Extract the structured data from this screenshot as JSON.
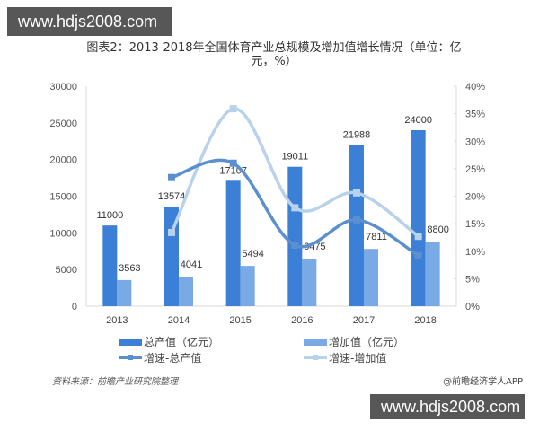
{
  "watermarks": {
    "top": "www.hdjs2008.com",
    "bottom": "www.hdjs2008.com"
  },
  "title_line1": "图表2：2013-2018年全国体育产业总规模及增加值增长情况（单位：亿",
  "title_line2": "元，%）",
  "source": "资料来源：前瞻产业研究院整理",
  "credit": "@前瞻经济学人APP",
  "colors": {
    "total": "#3c7fd6",
    "added": "#7aaae6",
    "growth_total": "#5b8fd0",
    "growth_added": "#b8d2ec"
  },
  "legend": {
    "total": "总产值（亿元）",
    "added": "增加值（亿元）",
    "growth_total": "增速-总产值",
    "growth_added": "增速-增加值"
  },
  "chart_data": {
    "type": "bar+line",
    "title": "2013-2018年全国体育产业总规模及增加值增长情况（单位：亿元，%）",
    "categories": [
      "2013",
      "2014",
      "2015",
      "2016",
      "2017",
      "2018"
    ],
    "series": [
      {
        "name": "总产值（亿元）",
        "type": "bar",
        "axis": "left",
        "values": [
          11000,
          13574,
          17107,
          19011,
          21988,
          24000
        ]
      },
      {
        "name": "增加值（亿元）",
        "type": "bar",
        "axis": "left",
        "values": [
          3563,
          4041,
          5494,
          6475,
          7811,
          8800
        ]
      },
      {
        "name": "增速-总产值",
        "type": "line",
        "axis": "right",
        "values": [
          null,
          23.4,
          26.0,
          11.1,
          15.7,
          9.2
        ]
      },
      {
        "name": "增速-增加值",
        "type": "line",
        "axis": "right",
        "values": [
          null,
          13.4,
          35.9,
          17.9,
          20.6,
          12.7
        ]
      }
    ],
    "left_axis": {
      "ticks": [
        "0",
        "5000",
        "10000",
        "15000",
        "20000",
        "25000",
        "30000"
      ],
      "ylim": [
        0,
        30000
      ]
    },
    "right_axis": {
      "ticks": [
        "0%",
        "5%",
        "10%",
        "15%",
        "20%",
        "25%",
        "30%",
        "35%",
        "40%"
      ],
      "ylim": [
        0,
        40
      ]
    },
    "legend_position": "bottom",
    "grid": false
  }
}
